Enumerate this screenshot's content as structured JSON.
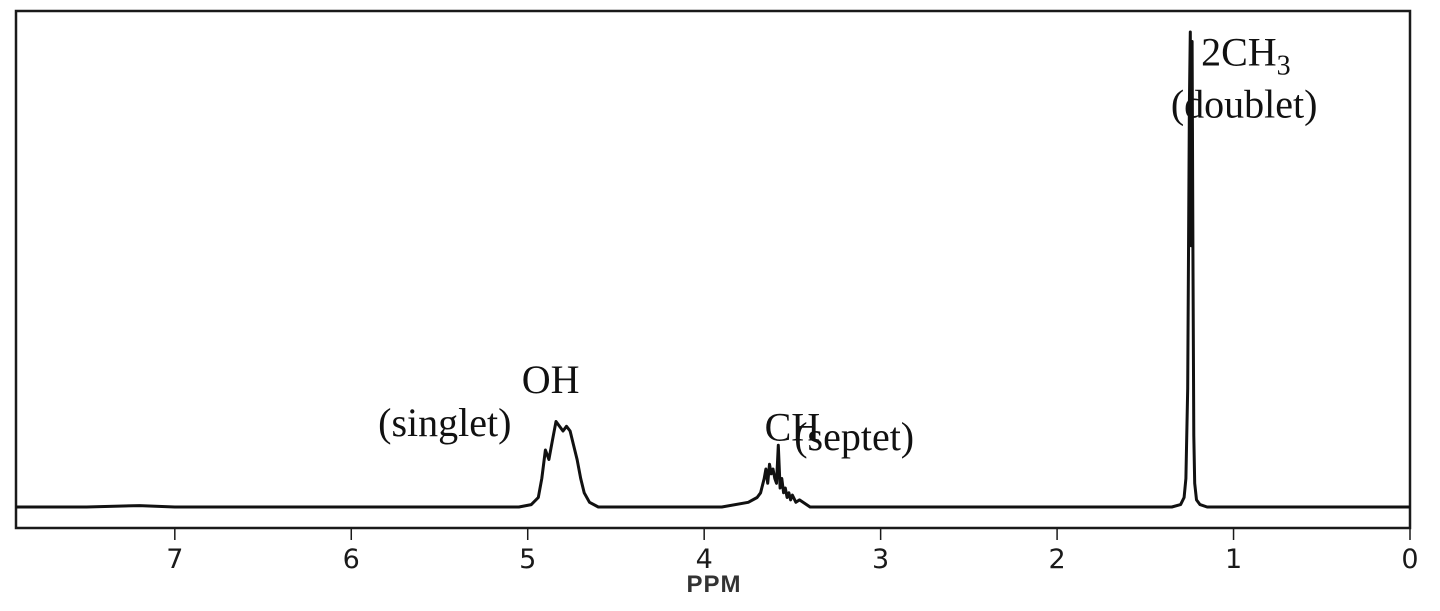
{
  "chart_data": {
    "type": "line",
    "title": "",
    "xlabel": "PPM",
    "ylabel": "",
    "x_reversed": true,
    "xlim": [
      7.9,
      0
    ],
    "ylim": [
      0,
      1
    ],
    "x_ticks": [
      7,
      6,
      5,
      4,
      3,
      2,
      1,
      0
    ],
    "grid": false,
    "series": [
      {
        "x": [
          7.9,
          7.5,
          7.2,
          7.0,
          6.5,
          6.0,
          5.5,
          5.05,
          4.98,
          4.94,
          4.92,
          4.9,
          4.88,
          4.86,
          4.84,
          4.82,
          4.8,
          4.78,
          4.76,
          4.74,
          4.72,
          4.7,
          4.68,
          4.65,
          4.6,
          4.3,
          3.9,
          3.75,
          3.7,
          3.68,
          3.66,
          3.65,
          3.64,
          3.63,
          3.62,
          3.61,
          3.6,
          3.59,
          3.58,
          3.57,
          3.56,
          3.55,
          3.54,
          3.53,
          3.52,
          3.51,
          3.5,
          3.48,
          3.46,
          3.4,
          3.2,
          2.8,
          2.4,
          2.0,
          1.6,
          1.35,
          1.3,
          1.28,
          1.27,
          1.26,
          1.25,
          1.245,
          1.24,
          1.235,
          1.23,
          1.225,
          1.22,
          1.21,
          1.19,
          1.15,
          1.0,
          0.5,
          0.0
        ],
        "y": [
          0.0,
          0.0,
          0.003,
          0.0,
          0.0,
          0.0,
          0.0,
          0.0,
          0.005,
          0.02,
          0.06,
          0.12,
          0.1,
          0.14,
          0.18,
          0.17,
          0.16,
          0.17,
          0.16,
          0.13,
          0.1,
          0.06,
          0.03,
          0.01,
          0.0,
          0.0,
          0.0,
          0.01,
          0.02,
          0.03,
          0.06,
          0.08,
          0.05,
          0.09,
          0.07,
          0.08,
          0.06,
          0.05,
          0.13,
          0.04,
          0.06,
          0.03,
          0.04,
          0.02,
          0.03,
          0.015,
          0.025,
          0.01,
          0.015,
          0.0,
          0.0,
          0.0,
          0.0,
          0.0,
          0.0,
          0.0,
          0.005,
          0.02,
          0.06,
          0.25,
          0.85,
          1.0,
          0.55,
          0.98,
          0.5,
          0.15,
          0.05,
          0.015,
          0.005,
          0.0,
          0.0,
          0.0,
          0.0
        ]
      }
    ],
    "annotations": [
      {
        "text": "(singlet)",
        "x": 5.47,
        "y": 0.15
      },
      {
        "text": "OH",
        "x": 4.87,
        "y": 0.24
      },
      {
        "text": "CH",
        "x": 3.5,
        "y": 0.14
      },
      {
        "text": "(septet)",
        "x": 3.15,
        "y": 0.12
      },
      {
        "text": "2CH3",
        "x": 0.93,
        "y": 0.93
      },
      {
        "text": "(doublet)",
        "x": 0.94,
        "y": 0.82
      }
    ]
  }
}
